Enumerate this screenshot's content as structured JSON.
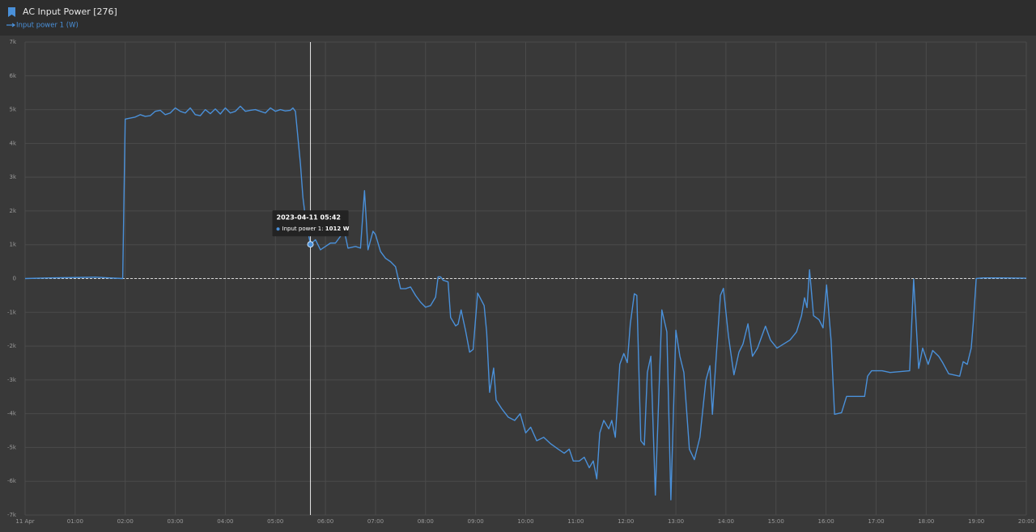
{
  "chart_data": {
    "type": "line",
    "title": "AC Input Power [276]",
    "x": [
      0,
      0.5,
      1,
      1.4,
      1.95,
      2.0,
      2.1,
      2.2,
      2.3,
      2.4,
      2.5,
      2.6,
      2.7,
      2.8,
      2.9,
      3.0,
      3.1,
      3.2,
      3.3,
      3.4,
      3.5,
      3.6,
      3.7,
      3.8,
      3.9,
      4.0,
      4.1,
      4.2,
      4.3,
      4.4,
      4.5,
      4.6,
      4.7,
      4.8,
      4.9,
      5.0,
      5.1,
      5.2,
      5.3,
      5.35,
      5.4,
      5.5,
      5.55,
      5.6,
      5.65,
      5.7,
      5.8,
      5.9,
      6.0,
      6.1,
      6.2,
      6.3,
      6.35,
      6.45,
      6.6,
      6.7,
      6.78,
      6.85,
      6.95,
      7.0,
      7.1,
      7.2,
      7.3,
      7.4,
      7.5,
      7.6,
      7.7,
      7.8,
      7.9,
      8.0,
      8.1,
      8.2,
      8.25,
      8.3,
      8.35,
      8.45,
      8.5,
      8.6,
      8.65,
      8.71,
      8.8,
      8.88,
      8.95,
      9.04,
      9.17,
      9.22,
      9.28,
      9.36,
      9.41,
      9.52,
      9.65,
      9.78,
      9.89,
      10.0,
      10.1,
      10.22,
      10.36,
      10.49,
      10.65,
      10.77,
      10.87,
      10.95,
      11.07,
      11.17,
      11.27,
      11.35,
      11.42,
      11.48,
      11.56,
      11.66,
      11.72,
      11.79,
      11.88,
      11.96,
      12.03,
      12.09,
      12.17,
      12.22,
      12.3,
      12.37,
      12.43,
      12.5,
      12.59,
      12.72,
      12.82,
      12.9,
      13.0,
      13.08,
      13.16,
      13.27,
      13.37,
      13.48,
      13.6,
      13.68,
      13.73,
      13.81,
      13.89,
      13.95,
      14.05,
      14.16,
      14.26,
      14.34,
      14.44,
      14.53,
      14.63,
      14.79,
      14.89,
      15.02,
      15.15,
      15.28,
      15.41,
      15.51,
      15.57,
      15.62,
      15.67,
      15.75,
      15.86,
      15.94,
      16.01,
      16.1,
      16.17,
      16.31,
      16.41,
      16.64,
      16.77,
      16.83,
      16.91,
      17.12,
      17.28,
      17.67,
      17.75,
      17.85,
      17.93,
      18.04,
      18.13,
      18.25,
      18.33,
      18.45,
      18.67,
      18.74,
      18.82,
      18.9,
      18.94,
      19.0,
      19.14,
      19.5,
      20.0
    ],
    "series": [
      {
        "name": "Input power 1 (W)",
        "color": "#4a90d9",
        "values": [
          0,
          20,
          30,
          40,
          0,
          4720,
          4750,
          4780,
          4850,
          4800,
          4820,
          4950,
          4980,
          4850,
          4900,
          5050,
          4950,
          4900,
          5050,
          4850,
          4820,
          5000,
          4880,
          5020,
          4870,
          5050,
          4900,
          4950,
          5100,
          4950,
          4980,
          5000,
          4950,
          4900,
          5050,
          4950,
          5000,
          4960,
          4980,
          5050,
          4950,
          3400,
          2400,
          1800,
          1400,
          1012,
          1150,
          850,
          950,
          1050,
          1050,
          1250,
          1600,
          900,
          950,
          900,
          2600,
          850,
          1400,
          1300,
          800,
          600,
          500,
          350,
          -300,
          -300,
          -250,
          -500,
          -700,
          -850,
          -800,
          -550,
          50,
          50,
          -50,
          -100,
          -1150,
          -1400,
          -1350,
          -930,
          -1550,
          -2180,
          -2100,
          -430,
          -800,
          -1580,
          -3370,
          -2650,
          -3600,
          -3850,
          -4100,
          -4200,
          -4000,
          -4570,
          -4400,
          -4800,
          -4700,
          -4880,
          -5050,
          -5170,
          -5050,
          -5400,
          -5400,
          -5290,
          -5600,
          -5400,
          -5930,
          -4570,
          -4200,
          -4450,
          -4200,
          -4700,
          -2540,
          -2220,
          -2490,
          -1340,
          -450,
          -500,
          -4800,
          -4930,
          -2780,
          -2300,
          -6410,
          -930,
          -1580,
          -6550,
          -1530,
          -2300,
          -2780,
          -5050,
          -5360,
          -4700,
          -3010,
          -2580,
          -4020,
          -2220,
          -500,
          -290,
          -1700,
          -2850,
          -2180,
          -1940,
          -1340,
          -2300,
          -2060,
          -1410,
          -1820,
          -2060,
          -1940,
          -1820,
          -1580,
          -1100,
          -570,
          -860,
          260,
          -1100,
          -1220,
          -1460,
          -190,
          -1820,
          -4020,
          -3970,
          -3490,
          -3490,
          -3490,
          -2890,
          -2730,
          -2730,
          -2780,
          -2730,
          -20,
          -2660,
          -2060,
          -2540,
          -2130,
          -2300,
          -2490,
          -2820,
          -2890,
          -2460,
          -2540,
          -2060,
          -1340,
          0,
          20,
          20,
          10
        ]
      }
    ],
    "xlim": [
      0,
      20
    ],
    "xticks": [
      {
        "value": 0,
        "label": "11 Apr"
      },
      {
        "value": 1,
        "label": "01:00"
      },
      {
        "value": 2,
        "label": "02:00"
      },
      {
        "value": 3,
        "label": "03:00"
      },
      {
        "value": 4,
        "label": "04:00"
      },
      {
        "value": 5,
        "label": "05:00"
      },
      {
        "value": 6,
        "label": "06:00"
      },
      {
        "value": 7,
        "label": "07:00"
      },
      {
        "value": 8,
        "label": "08:00"
      },
      {
        "value": 9,
        "label": "09:00"
      },
      {
        "value": 10,
        "label": "10:00"
      },
      {
        "value": 11,
        "label": "11:00"
      },
      {
        "value": 12,
        "label": "12:00"
      },
      {
        "value": 13,
        "label": "13:00"
      },
      {
        "value": 14,
        "label": "14:00"
      },
      {
        "value": 15,
        "label": "15:00"
      },
      {
        "value": 16,
        "label": "16:00"
      },
      {
        "value": 17,
        "label": "17:00"
      },
      {
        "value": 18,
        "label": "18:00"
      },
      {
        "value": 19,
        "label": "19:00"
      },
      {
        "value": 20,
        "label": "20:00"
      }
    ],
    "ylim": [
      -7000,
      7000
    ],
    "yticks": [
      {
        "value": -7000,
        "label": "-7k"
      },
      {
        "value": -6000,
        "label": "-6k"
      },
      {
        "value": -5000,
        "label": "-5k"
      },
      {
        "value": -4000,
        "label": "-4k"
      },
      {
        "value": -3000,
        "label": "-3k"
      },
      {
        "value": -2000,
        "label": "-2k"
      },
      {
        "value": -1000,
        "label": "-1k"
      },
      0,
      {
        "value": 1000,
        "label": "1k"
      },
      {
        "value": 2000,
        "label": "2k"
      },
      {
        "value": 3000,
        "label": "3k"
      },
      {
        "value": 4000,
        "label": "4k"
      },
      {
        "value": 5000,
        "label": "5k"
      },
      {
        "value": 6000,
        "label": "6k"
      },
      {
        "value": 7000,
        "label": "7k"
      }
    ],
    "grid": true,
    "tooltip": {
      "title": "2023-04-11 05:42",
      "label": "Input power 1:",
      "value": 1012,
      "value_label": "1012 W"
    }
  }
}
